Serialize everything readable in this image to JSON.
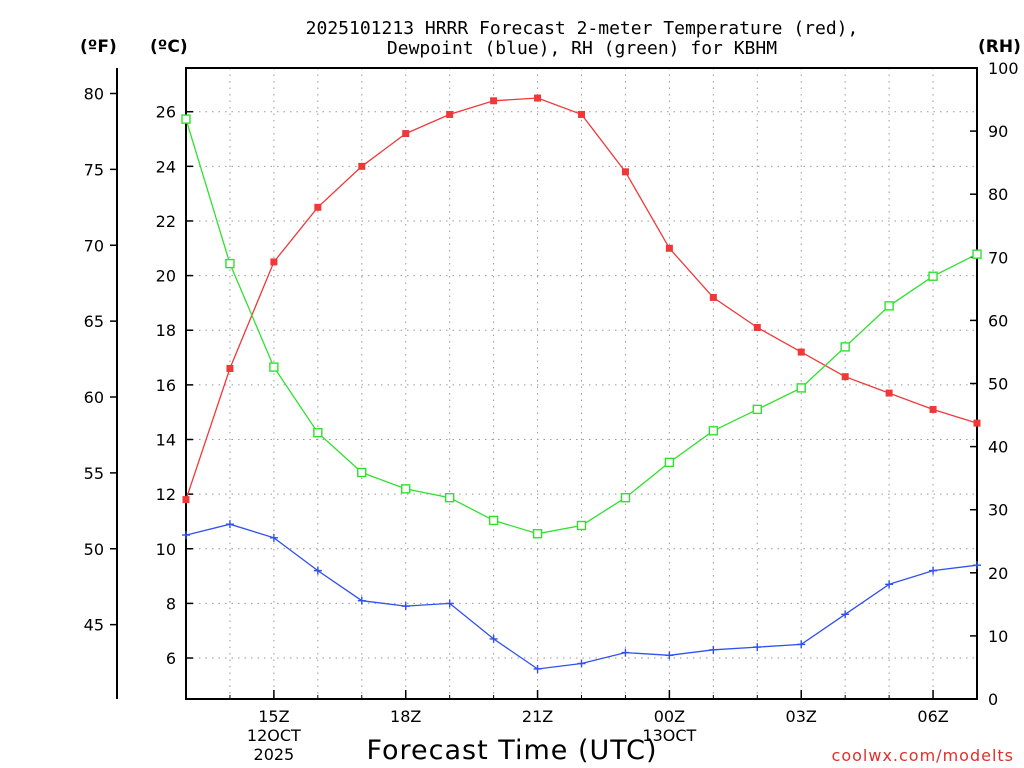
{
  "chart_data": {
    "type": "line",
    "title": [
      "2025101213 HRRR Forecast 2-meter Temperature (red),",
      "Dewpoint (blue), RH (green) for KBHM"
    ],
    "xlabel": "Forecast Time (UTC)",
    "credit": "coolwx.com/modelts",
    "unit_labels": {
      "fahrenheit": "(ºF)",
      "celsius": "(ºC)",
      "rh": "(RH)"
    },
    "x_hours": [
      13,
      14,
      15,
      16,
      17,
      18,
      19,
      20,
      21,
      22,
      23,
      24,
      25,
      26,
      27,
      28,
      29,
      30,
      31
    ],
    "x_range": [
      13,
      31
    ],
    "x_ticks": [
      {
        "hour": 15,
        "lines": [
          "15Z",
          "12OCT",
          "2025"
        ]
      },
      {
        "hour": 18,
        "lines": [
          "18Z"
        ]
      },
      {
        "hour": 21,
        "lines": [
          "21Z"
        ]
      },
      {
        "hour": 24,
        "lines": [
          "00Z",
          "13OCT"
        ]
      },
      {
        "hour": 27,
        "lines": [
          "03Z"
        ]
      },
      {
        "hour": 30,
        "lines": [
          "06Z"
        ]
      }
    ],
    "celsius_axis": {
      "range": [
        4.5,
        27.6
      ],
      "ticks": [
        6,
        8,
        10,
        12,
        14,
        16,
        18,
        20,
        22,
        24,
        26
      ]
    },
    "fahrenheit_axis": {
      "ticks": [
        45,
        50,
        55,
        60,
        65,
        70,
        75,
        80
      ]
    },
    "rh_axis": {
      "range": [
        0,
        100
      ],
      "ticks": [
        0,
        10,
        20,
        30,
        40,
        50,
        60,
        70,
        80,
        90,
        100
      ]
    },
    "series": [
      {
        "name": "Temperature",
        "units": "C",
        "color": "#f03838",
        "marker": "filled-square",
        "values": [
          11.8,
          16.6,
          20.5,
          22.5,
          24.0,
          25.2,
          25.9,
          26.4,
          26.5,
          25.9,
          23.8,
          21.0,
          19.2,
          18.1,
          17.2,
          16.3,
          15.7,
          15.1,
          14.6
        ]
      },
      {
        "name": "Dewpoint",
        "units": "C",
        "color": "#3050f0",
        "marker": "plus",
        "values": [
          10.5,
          10.9,
          10.4,
          9.2,
          8.1,
          7.9,
          8.0,
          6.7,
          5.6,
          5.8,
          6.2,
          6.1,
          6.3,
          6.4,
          6.5,
          7.6,
          8.7,
          9.2,
          9.4
        ]
      },
      {
        "name": "RH",
        "units": "%",
        "color": "#30e030",
        "marker": "open-square",
        "values": [
          91.9,
          69.0,
          52.6,
          42.2,
          35.9,
          33.3,
          31.9,
          28.3,
          26.2,
          27.5,
          31.9,
          37.5,
          42.5,
          45.9,
          49.3,
          55.8,
          62.3,
          67.0,
          70.5
        ]
      }
    ]
  }
}
